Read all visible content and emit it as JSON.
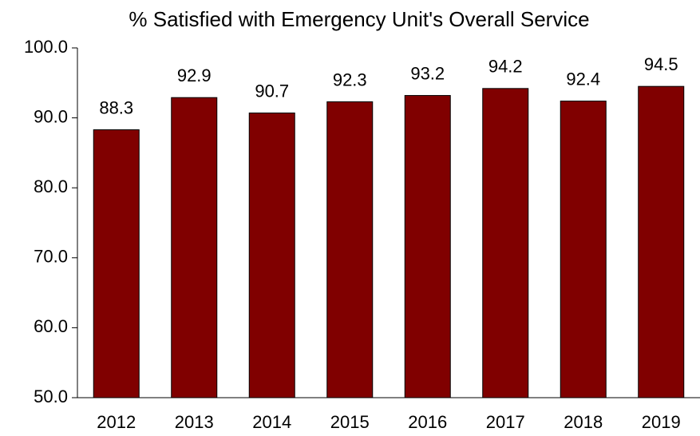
{
  "chart_data": {
    "type": "bar",
    "title": "% Satisfied with Emergency Unit's Overall Service",
    "categories": [
      "2012",
      "2013",
      "2014",
      "2015",
      "2016",
      "2017",
      "2018",
      "2019"
    ],
    "values": [
      88.3,
      92.9,
      90.7,
      92.3,
      93.2,
      94.2,
      92.4,
      94.5
    ],
    "color": "#800000",
    "ylim": [
      50,
      100
    ],
    "yticks": [
      {
        "value": 50,
        "label": "50.0"
      },
      {
        "value": 60,
        "label": "60.0"
      },
      {
        "value": 70,
        "label": "70.0"
      },
      {
        "value": 80,
        "label": "80.0"
      },
      {
        "value": 90,
        "label": "90.0"
      },
      {
        "value": 100,
        "label": "100.0"
      }
    ],
    "grid": false
  }
}
